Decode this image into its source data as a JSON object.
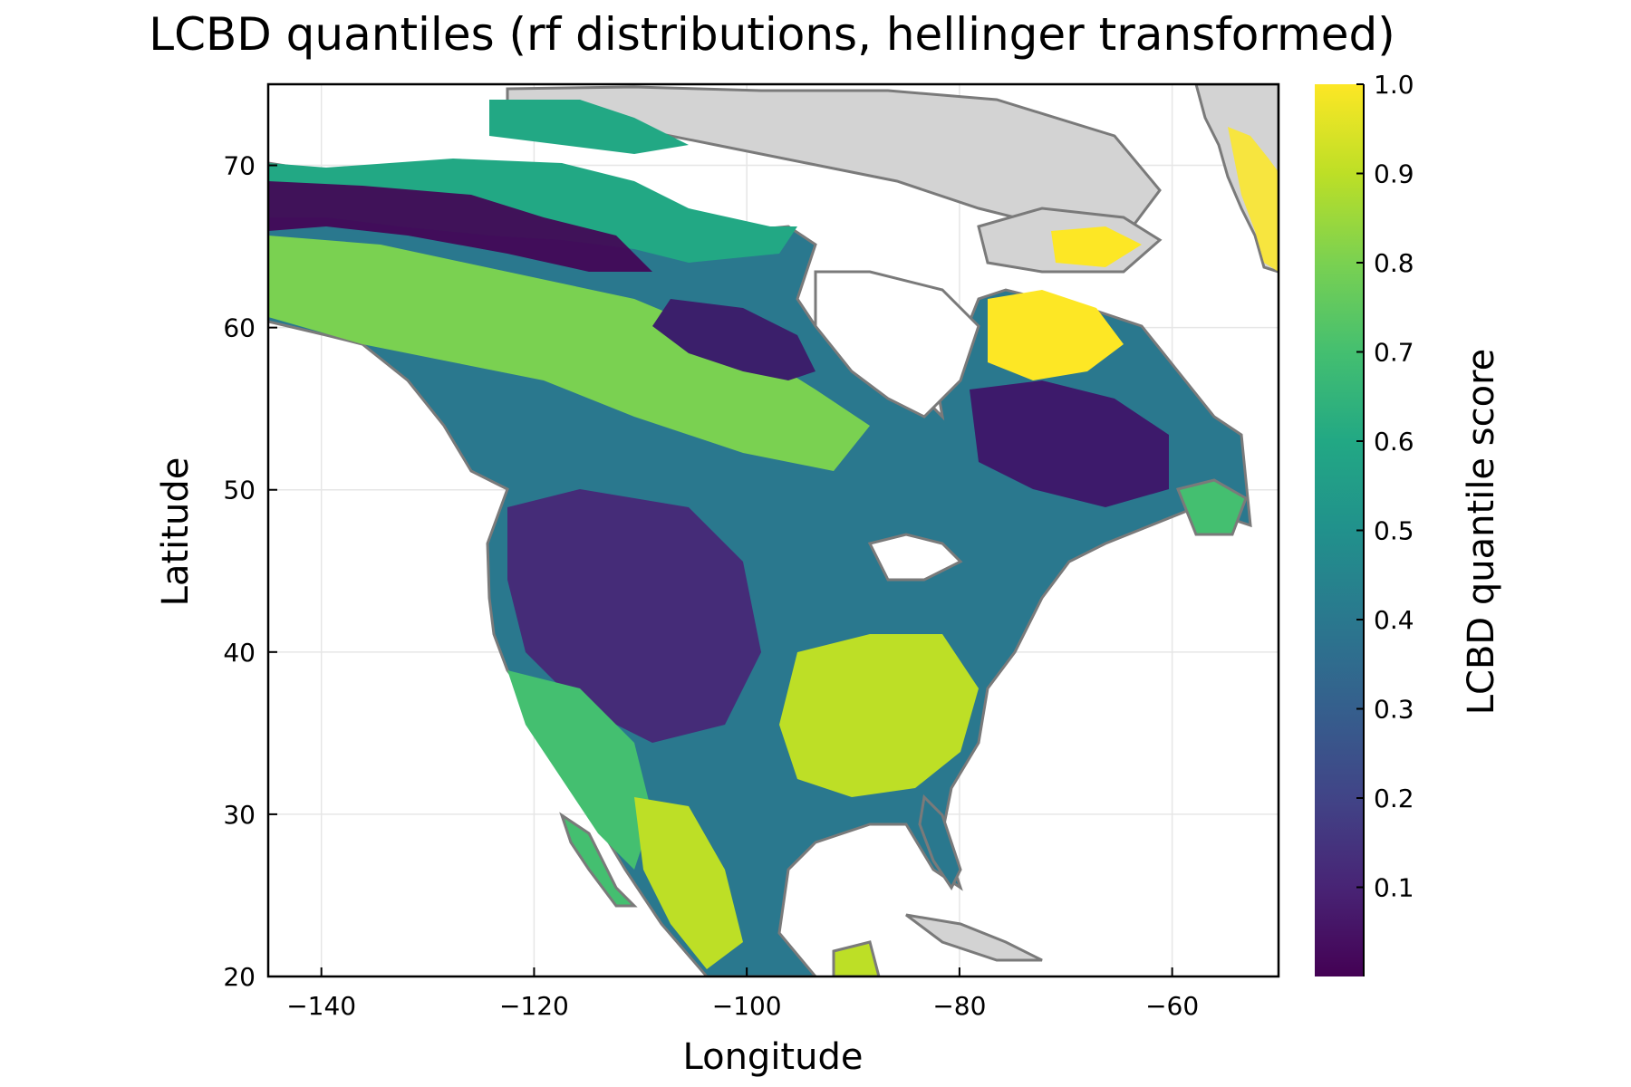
{
  "title": "LCBD quantiles (rf distributions, hellinger transformed)",
  "x_axis": {
    "label": "Longitude",
    "range": [
      -145,
      -50
    ],
    "ticks": [
      -140,
      -120,
      -100,
      -80,
      -60
    ],
    "tick_labels": [
      "−140",
      "−120",
      "−100",
      "−80",
      "−60"
    ]
  },
  "y_axis": {
    "label": "Latitude",
    "range": [
      20,
      75
    ],
    "ticks": [
      20,
      30,
      40,
      50,
      60,
      70
    ],
    "tick_labels": [
      "20",
      "30",
      "40",
      "50",
      "60",
      "70"
    ]
  },
  "colorbar": {
    "label": "LCBD quantile score",
    "colormap": "viridis",
    "range": [
      0,
      1
    ],
    "ticks": [
      0.1,
      0.2,
      0.3,
      0.4,
      0.5,
      0.6,
      0.7,
      0.8,
      0.9,
      1.0
    ],
    "tick_labels": [
      "0.1",
      "0.2",
      "0.3",
      "0.4",
      "0.5",
      "0.6",
      "0.7",
      "0.8",
      "0.9",
      "1.0"
    ]
  },
  "map": {
    "no_data_land_color": "#d3d3d3",
    "outline_color": "#7a7a7a",
    "grid": true
  },
  "colors": {
    "viridis_0": "#440154",
    "viridis_25": "#3b528b",
    "viridis_50": "#21918c",
    "viridis_75": "#5ec962",
    "viridis_100": "#fde725"
  }
}
